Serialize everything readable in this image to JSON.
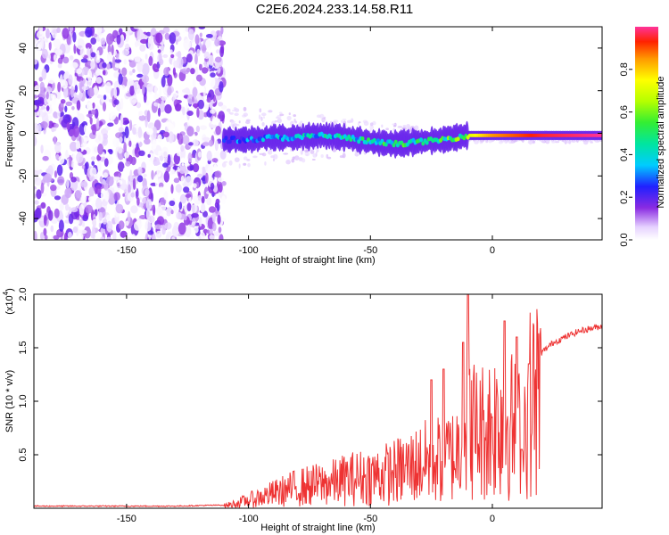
{
  "title": "C2E6.2024.233.14.58.R11",
  "chart_data": [
    {
      "type": "heatmap",
      "title": "",
      "xlabel": "Height of straight line (km)",
      "ylabel": "Frequency (Hz)",
      "xlim": [
        -188,
        45
      ],
      "ylim": [
        -50,
        50
      ],
      "x_ticks": [
        "-150",
        "-100",
        "-50",
        "0"
      ],
      "x_tick_values": [
        -150,
        -100,
        -50,
        0
      ],
      "y_ticks": [
        "-40",
        "-20",
        "0",
        "20",
        "40"
      ],
      "y_tick_values": [
        -40,
        -20,
        0,
        20,
        40
      ],
      "colorbar": {
        "label": "Normalized spectral amplitude",
        "range": [
          0.0,
          1.0
        ],
        "ticks": [
          "0.0",
          "0.2",
          "0.4",
          "0.6",
          "0.8"
        ],
        "tick_values": [
          0.0,
          0.2,
          0.4,
          0.6,
          0.8
        ]
      },
      "noise_region_x": [
        -188,
        -110
      ],
      "signal_track": {
        "x": [
          -110,
          -100,
          -90,
          -80,
          -70,
          -60,
          -50,
          -40,
          -30,
          -20,
          -10,
          0,
          10,
          20,
          30,
          45
        ],
        "freq": [
          -3,
          -3,
          -2,
          -2,
          -1,
          -2,
          -4,
          -5,
          -4,
          -3,
          -1,
          -1,
          -1,
          -1,
          -1,
          -1
        ],
        "amplitude": [
          0.3,
          0.35,
          0.4,
          0.45,
          0.45,
          0.45,
          0.5,
          0.55,
          0.5,
          0.55,
          0.7,
          0.85,
          0.9,
          0.95,
          0.97,
          1.0
        ]
      },
      "grid": false
    },
    {
      "type": "line",
      "title": "",
      "xlabel": "Height of straight line (km)",
      "ylabel": "SNR (10 * v/v)",
      "multiplier_label": "(x10",
      "multiplier_exp": "4",
      "xlim": [
        -188,
        45
      ],
      "ylim": [
        0,
        2.0
      ],
      "x_ticks": [
        "-150",
        "-100",
        "-50",
        "0"
      ],
      "x_tick_values": [
        -150,
        -100,
        -50,
        0
      ],
      "y_ticks": [
        "0.5",
        "1.0",
        "1.5",
        "2.0"
      ],
      "y_tick_values": [
        0.5,
        1.0,
        1.5,
        2.0
      ],
      "series": [
        {
          "color": "#ee3333",
          "x": [
            -188,
            -170,
            -150,
            -130,
            -110,
            -105,
            -100,
            -95,
            -90,
            -85,
            -80,
            -75,
            -70,
            -65,
            -60,
            -55,
            -50,
            -45,
            -40,
            -35,
            -30,
            -25,
            -20,
            -15,
            -12,
            -10,
            -8,
            -5,
            0,
            5,
            10,
            12,
            15,
            20,
            25,
            30,
            35,
            40,
            45
          ],
          "y": [
            0.02,
            0.02,
            0.02,
            0.02,
            0.03,
            0.06,
            0.1,
            0.14,
            0.18,
            0.22,
            0.26,
            0.28,
            0.3,
            0.32,
            0.36,
            0.38,
            0.4,
            0.42,
            0.45,
            0.5,
            0.55,
            0.6,
            0.62,
            0.68,
            0.9,
            1.2,
            1.0,
            0.95,
            1.05,
            1.15,
            0.95,
            0.9,
            1.3,
            1.45,
            1.55,
            1.6,
            1.65,
            1.68,
            1.7
          ],
          "peaks": [
            [
              -10,
              2.0
            ],
            [
              -12,
              1.55
            ],
            [
              5,
              1.75
            ],
            [
              10,
              1.6
            ],
            [
              12,
              0.55
            ],
            [
              15,
              1.35
            ],
            [
              -20,
              1.3
            ],
            [
              -25,
              1.2
            ]
          ]
        }
      ],
      "grid": false
    }
  ]
}
